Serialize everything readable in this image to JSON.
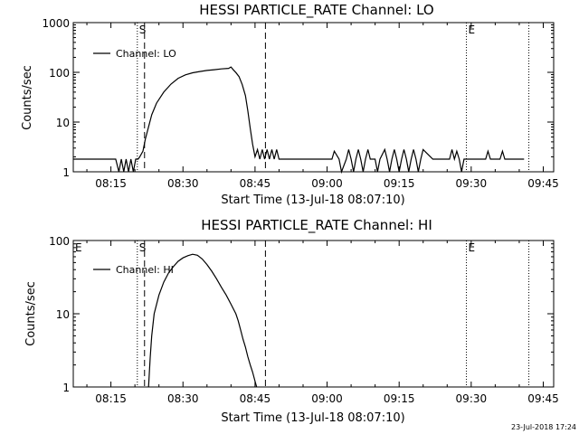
{
  "chart_data": [
    {
      "type": "line",
      "title": "HESSI PARTICLE_RATE Channel: LO",
      "xlabel": "Start Time (13-Jul-18 08:07:10)",
      "ylabel": "Counts/sec",
      "yscale": "log",
      "ylim": [
        1,
        1000
      ],
      "xlim": [
        "08:07:10",
        "09:47:10"
      ],
      "xticks": [
        "08:15",
        "08:30",
        "08:45",
        "09:00",
        "09:15",
        "09:30",
        "09:45"
      ],
      "yticks": [
        "1",
        "10",
        "100",
        "1000"
      ],
      "legend": {
        "position": "top-left"
      },
      "series": [
        {
          "name": "Channel: LO",
          "color": "#000000",
          "x": [
            "08:07:10",
            "08:16:00",
            "08:16:40",
            "08:17:10",
            "08:17:40",
            "08:18:10",
            "08:18:40",
            "08:19:10",
            "08:19:40",
            "08:20:10",
            "08:20:40",
            "08:21:00",
            "08:21:40",
            "08:22:10",
            "08:22:50",
            "08:23:30",
            "08:24:30",
            "08:26:00",
            "08:27:30",
            "08:29:00",
            "08:30:30",
            "08:32:00",
            "08:33:30",
            "08:35:00",
            "08:36:30",
            "08:38:00",
            "08:39:30",
            "08:40:00",
            "08:40:30",
            "08:41:00",
            "08:41:40",
            "08:42:20",
            "08:43:00",
            "08:43:30",
            "08:44:00",
            "08:44:30",
            "08:45:00",
            "08:45:30",
            "08:46:00",
            "08:46:30",
            "08:47:00",
            "08:47:30",
            "08:48:00",
            "08:48:30",
            "08:49:00",
            "08:49:30",
            "08:50:00",
            "08:51:00",
            "08:53:00",
            "08:55:00",
            "08:57:00",
            "08:59:00",
            "09:01:00",
            "09:01:30",
            "09:02:30",
            "09:03:00",
            "09:04:00",
            "09:04:30",
            "09:05:00",
            "09:05:30",
            "09:06:00",
            "09:06:30",
            "09:07:00",
            "09:07:30",
            "09:08:00",
            "09:08:30",
            "09:09:00",
            "09:10:00",
            "09:10:30",
            "09:11:00",
            "09:12:00",
            "09:12:30",
            "09:13:00",
            "09:13:30",
            "09:14:00",
            "09:14:30",
            "09:15:00",
            "09:15:30",
            "09:16:00",
            "09:16:30",
            "09:17:00",
            "09:17:30",
            "09:18:00",
            "09:18:30",
            "09:19:00",
            "09:19:30",
            "09:20:00",
            "09:22:00",
            "09:24:00",
            "09:25:30",
            "09:26:00",
            "09:26:30",
            "09:27:00",
            "09:27:30",
            "09:28:00",
            "09:28:30",
            "09:29:00",
            "09:31:00",
            "09:33:00",
            "09:33:30",
            "09:34:00",
            "09:36:00",
            "09:36:30",
            "09:37:00",
            "09:41:00"
          ],
          "y": [
            1.8,
            1.8,
            1.0,
            1.8,
            1.0,
            1.8,
            1.0,
            1.8,
            1.0,
            1.8,
            1.8,
            2.0,
            2.6,
            4.5,
            8,
            14,
            24,
            40,
            58,
            76,
            89,
            98,
            104,
            109,
            113,
            117,
            120,
            128,
            112,
            99,
            82,
            57,
            34,
            17,
            7.5,
            3.6,
            2.0,
            2.8,
            1.8,
            2.8,
            1.8,
            2.8,
            1.8,
            2.8,
            1.8,
            2.8,
            1.8,
            1.8,
            1.8,
            1.8,
            1.8,
            1.8,
            1.8,
            2.6,
            1.8,
            1.0,
            1.8,
            2.8,
            1.8,
            1.0,
            1.8,
            2.8,
            1.8,
            1.0,
            1.8,
            2.8,
            1.8,
            1.8,
            1.0,
            1.8,
            2.8,
            1.8,
            1.0,
            1.8,
            2.8,
            1.8,
            1.0,
            1.8,
            2.8,
            1.8,
            1.0,
            1.8,
            2.8,
            1.8,
            1.0,
            1.8,
            2.8,
            1.8,
            1.8,
            1.8,
            2.8,
            1.8,
            2.6,
            1.8,
            1.0,
            1.8,
            1.8,
            1.8,
            1.8,
            2.6,
            1.8,
            1.8,
            2.6,
            1.8,
            1.8
          ]
        }
      ],
      "markers": [
        {
          "label": "",
          "x": "08:07:10",
          "style": "dotted"
        },
        {
          "label": "S",
          "x": "08:20:30",
          "style": "dotted"
        },
        {
          "label": "",
          "x": "08:22:00",
          "style": "dashed"
        },
        {
          "label": "",
          "x": "08:47:10",
          "style": "dashed"
        },
        {
          "label": "E",
          "x": "09:29:00",
          "style": "dotted"
        },
        {
          "label": "",
          "x": "09:42:00",
          "style": "dotted"
        }
      ]
    },
    {
      "type": "line",
      "title": "HESSI PARTICLE_RATE Channel: HI",
      "xlabel": "Start Time (13-Jul-18 08:07:10)",
      "ylabel": "Counts/sec",
      "yscale": "log",
      "ylim": [
        1,
        100
      ],
      "xlim": [
        "08:07:10",
        "09:47:10"
      ],
      "xticks": [
        "08:15",
        "08:30",
        "08:45",
        "09:00",
        "09:15",
        "09:30",
        "09:45"
      ],
      "yticks": [
        "1",
        "10",
        "100"
      ],
      "legend": {
        "position": "top-left"
      },
      "series": [
        {
          "name": "Channel: HI",
          "color": "#000000",
          "x": [
            "08:22:50",
            "08:23:10",
            "08:23:30",
            "08:24:00",
            "08:25:00",
            "08:26:00",
            "08:27:00",
            "08:28:00",
            "08:29:00",
            "08:30:00",
            "08:31:00",
            "08:32:00",
            "08:33:00",
            "08:34:00",
            "08:35:00",
            "08:36:00",
            "08:37:00",
            "08:38:00",
            "08:39:00",
            "08:40:00",
            "08:41:00",
            "08:41:30",
            "08:42:00",
            "08:42:30",
            "08:43:00",
            "08:43:30",
            "08:44:00",
            "08:44:30",
            "08:45:00",
            "08:45:20"
          ],
          "y": [
            1,
            2.5,
            5,
            10,
            18,
            27,
            36,
            44,
            52,
            58,
            62,
            65,
            63,
            56,
            47,
            38,
            30,
            23,
            18,
            13.5,
            10,
            8,
            6,
            4.5,
            3.5,
            2.6,
            2,
            1.6,
            1.2,
            1
          ]
        }
      ],
      "markers": [
        {
          "label": "E",
          "x": "08:07:10",
          "style": "dotted"
        },
        {
          "label": "S",
          "x": "08:20:30",
          "style": "dotted"
        },
        {
          "label": "",
          "x": "08:22:00",
          "style": "dashed"
        },
        {
          "label": "",
          "x": "08:47:10",
          "style": "dashed"
        },
        {
          "label": "E",
          "x": "09:29:00",
          "style": "dotted"
        },
        {
          "label": "",
          "x": "09:42:00",
          "style": "dotted"
        }
      ]
    }
  ],
  "footer": {
    "timestamp": "23-Jul-2018 17:24"
  }
}
